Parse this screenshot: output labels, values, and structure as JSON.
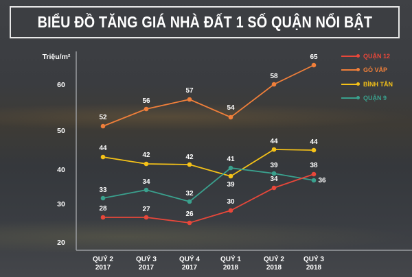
{
  "title": "BIỂU ĐỒ TĂNG GIÁ NHÀ ĐẤT 1 SỐ QUẬN NỔI BẬT",
  "y_axis_label": "Triệu/m²",
  "y_ticks": [
    "60",
    "50",
    "40",
    "30",
    "20"
  ],
  "x_ticks": [
    {
      "line1": "QUÝ 2",
      "line2": "2017"
    },
    {
      "line1": "QUÝ 3",
      "line2": "2017"
    },
    {
      "line1": "QUÝ 4",
      "line2": "2017"
    },
    {
      "line1": "QUÝ 1",
      "line2": "2018"
    },
    {
      "line1": "QUÝ 2",
      "line2": "2018"
    },
    {
      "line1": "QUÝ 3",
      "line2": "2018"
    }
  ],
  "legend": [
    {
      "label": "QUẬN 12",
      "color": "#e8473a"
    },
    {
      "label": "GÒ VẤP",
      "color": "#f07f3a"
    },
    {
      "label": "BÌNH TÂN",
      "color": "#f5c218"
    },
    {
      "label": "QUẬN 9",
      "color": "#3aa18e"
    }
  ],
  "chart_data": {
    "type": "line",
    "title": "BIỂU ĐỒ TĂNG GIÁ NHÀ ĐẤT 1 SỐ QUẬN NỔI BẬT",
    "xlabel": "",
    "ylabel": "Triệu/m²",
    "categories": [
      "Quý 2 2017",
      "Quý 3 2017",
      "Quý 4 2017",
      "Quý 1 2018",
      "Quý 2 2018",
      "Quý 3 2018"
    ],
    "ylim": [
      20,
      65
    ],
    "y_ticks": [
      20,
      30,
      40,
      50,
      60
    ],
    "grid": false,
    "legend_position": "top-right",
    "series": [
      {
        "name": "QUẬN 12",
        "color": "#e8473a",
        "values": [
          28,
          27,
          26,
          30,
          34,
          38
        ]
      },
      {
        "name": "GÒ VẤP",
        "color": "#f07f3a",
        "values": [
          52,
          56,
          57,
          54,
          58,
          65
        ]
      },
      {
        "name": "BÌNH TÂN",
        "color": "#f5c218",
        "values": [
          44,
          42,
          42,
          39,
          44,
          44
        ]
      },
      {
        "name": "QUẬN 9",
        "color": "#3aa18e",
        "values": [
          33,
          34,
          32,
          41,
          39,
          36
        ]
      }
    ]
  }
}
